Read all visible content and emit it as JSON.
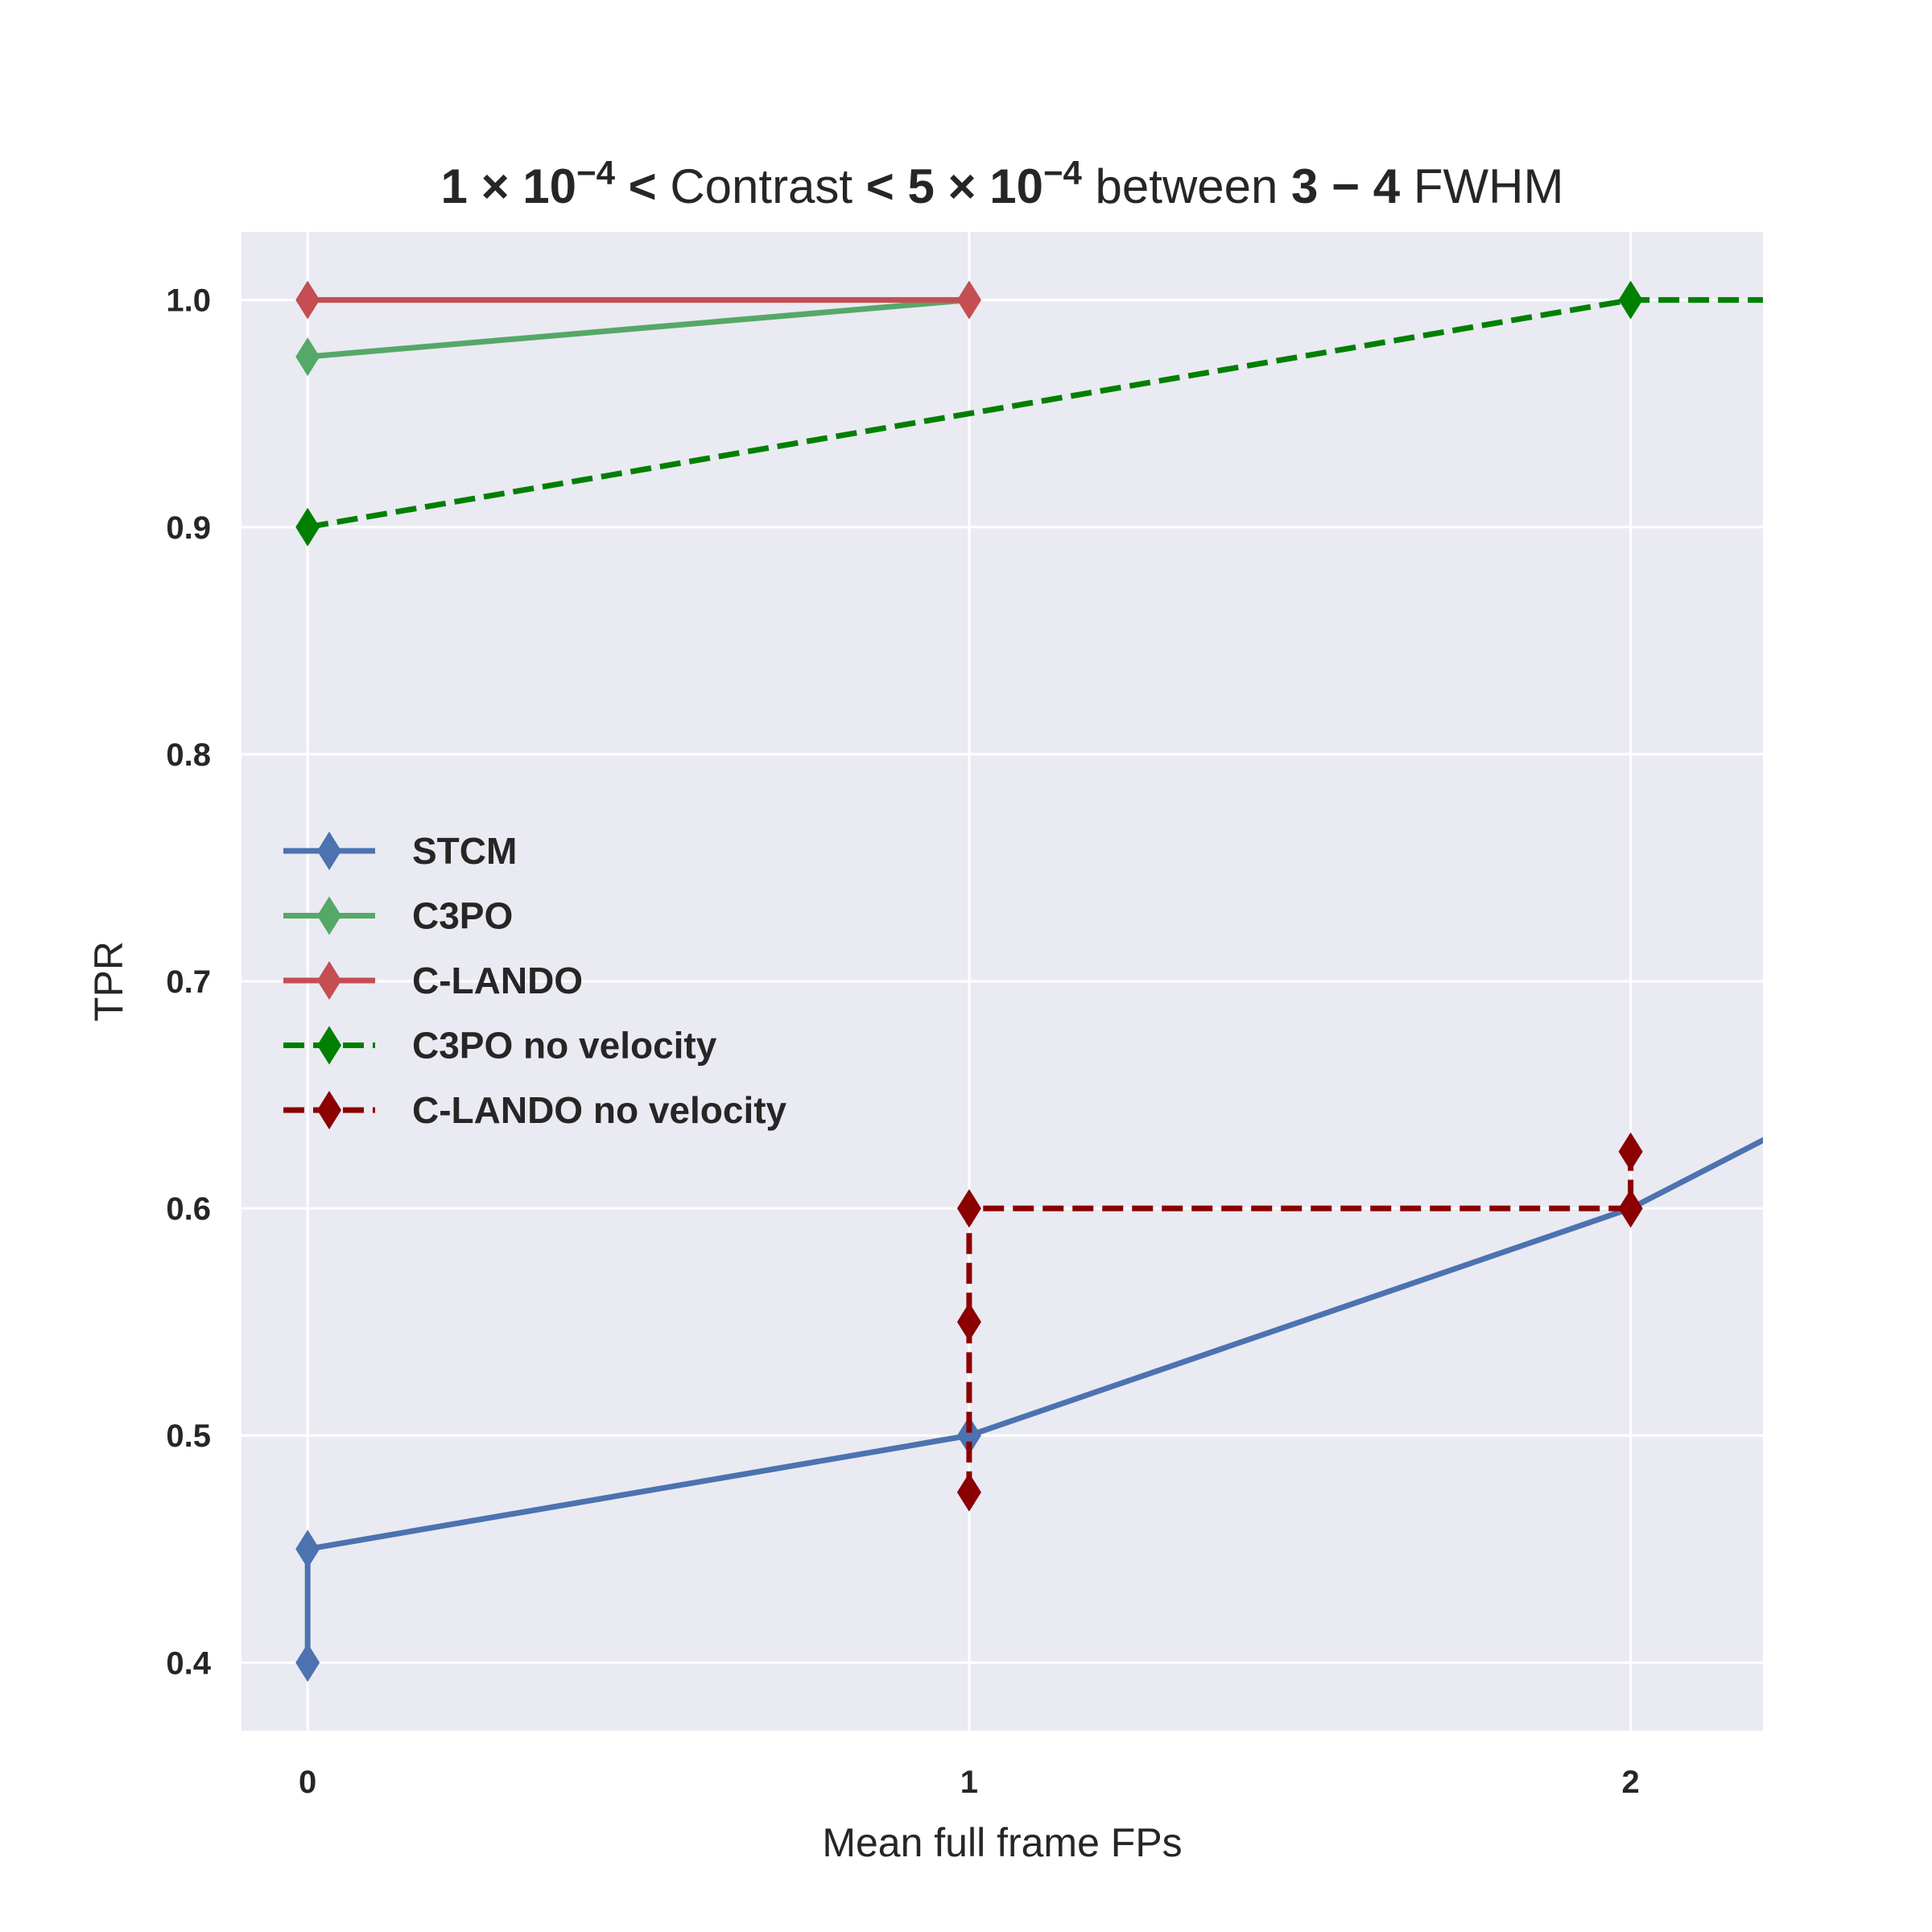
{
  "chart_data": {
    "type": "line",
    "title_parts": [
      {
        "text": "1 × 10",
        "bold": true
      },
      {
        "text": "−4",
        "bold": true,
        "sup": true
      },
      {
        "text": " < ",
        "bold": true
      },
      {
        "text": " Contrast ",
        "bold": false
      },
      {
        "text": " < 5 × 10",
        "bold": true
      },
      {
        "text": "−4",
        "bold": true,
        "sup": true
      },
      {
        "text": " between ",
        "bold": false
      },
      {
        "text": "3 − 4",
        "bold": true
      },
      {
        "text": " FWHM",
        "bold": false
      }
    ],
    "xlabel": "Mean full frame FPs",
    "ylabel": "TPR",
    "xlim": [
      -0.1,
      2.2
    ],
    "ylim": [
      0.37,
      1.03
    ],
    "xticks": [
      0,
      1,
      2
    ],
    "xtick_labels": [
      "0",
      "1",
      "2"
    ],
    "yticks": [
      0.4,
      0.5,
      0.6,
      0.7,
      0.8,
      0.9,
      1.0
    ],
    "ytick_labels": [
      "0.4",
      "0.5",
      "0.6",
      "0.7",
      "0.8",
      "0.9",
      "1.0"
    ],
    "grid": true,
    "background": "#eaeaf2",
    "legend_position": "center-left",
    "series": [
      {
        "name": "STCM",
        "color": "#4c72b0",
        "dash": "solid",
        "x": [
          0,
          0,
          1,
          2,
          3
        ],
        "y": [
          0.4,
          0.45,
          0.5,
          0.6,
          0.75
        ]
      },
      {
        "name": "C3PO",
        "color": "#55a868",
        "dash": "solid",
        "x": [
          0,
          1
        ],
        "y": [
          0.975,
          1.0
        ]
      },
      {
        "name": "C-LANDO",
        "color": "#c44e52",
        "dash": "solid",
        "x": [
          0,
          1
        ],
        "y": [
          1.0,
          1.0
        ]
      },
      {
        "name": "C3PO no velocity",
        "color": "#008000",
        "dash": "dashed",
        "x": [
          0,
          2,
          3
        ],
        "y": [
          0.9,
          1.0,
          1.0
        ]
      },
      {
        "name": "C-LANDO no velocity",
        "color": "#8b0000",
        "dash": "dashed",
        "x": [
          1,
          1,
          1,
          2,
          2
        ],
        "y": [
          0.475,
          0.55,
          0.6,
          0.6,
          0.625
        ]
      }
    ]
  }
}
